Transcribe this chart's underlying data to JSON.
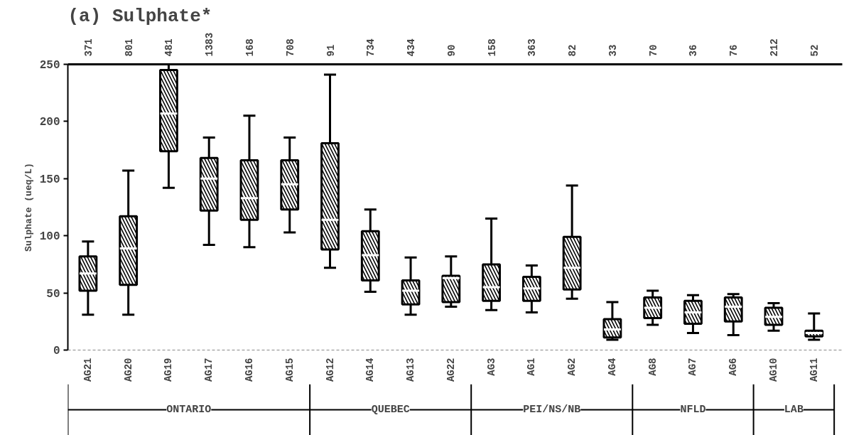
{
  "chart_data": {
    "type": "box",
    "title": "(a) Sulphate*",
    "ylabel": "Sulphate (ueq/L)",
    "categories": [
      "AG21",
      "AG20",
      "AG19",
      "AG17",
      "AG16",
      "AG15",
      "AG12",
      "AG14",
      "AG13",
      "AG22",
      "AG3",
      "AG1",
      "AG2",
      "AG4",
      "AG8",
      "AG7",
      "AG6",
      "AG10",
      "AG11"
    ],
    "color": "#000000",
    "boxes": [
      {
        "low": 31,
        "q1": 52,
        "median": 67,
        "q3": 82,
        "high": 95
      },
      {
        "low": 31,
        "q1": 57,
        "median": 89,
        "q3": 117,
        "high": 157
      },
      {
        "low": 142,
        "q1": 174,
        "median": 207,
        "q3": 245,
        "high": 250
      },
      {
        "low": 92,
        "q1": 122,
        "median": 150,
        "q3": 168,
        "high": 186
      },
      {
        "low": 90,
        "q1": 114,
        "median": 133,
        "q3": 166,
        "high": 205
      },
      {
        "low": 103,
        "q1": 123,
        "median": 145,
        "q3": 166,
        "high": 186
      },
      {
        "low": 72,
        "q1": 88,
        "median": 114,
        "q3": 181,
        "high": 241
      },
      {
        "low": 51,
        "q1": 61,
        "median": 83,
        "q3": 104,
        "high": 123
      },
      {
        "low": 31,
        "q1": 40,
        "median": 52,
        "q3": 61,
        "high": 81
      },
      {
        "low": 38,
        "q1": 42,
        "median": 63,
        "q3": 65,
        "high": 82
      },
      {
        "low": 35,
        "q1": 43,
        "median": 55,
        "q3": 75,
        "high": 115
      },
      {
        "low": 33,
        "q1": 43,
        "median": 54,
        "q3": 64,
        "high": 74
      },
      {
        "low": 45,
        "q1": 53,
        "median": 72,
        "q3": 99,
        "high": 144
      },
      {
        "low": 9,
        "q1": 11,
        "median": 18,
        "q3": 27,
        "high": 42
      },
      {
        "low": 22,
        "q1": 28,
        "median": 37,
        "q3": 46,
        "high": 52
      },
      {
        "low": 15,
        "q1": 23,
        "median": 33,
        "q3": 43,
        "high": 48
      },
      {
        "low": 13,
        "q1": 25,
        "median": 38,
        "q3": 46,
        "high": 49
      },
      {
        "low": 17,
        "q1": 22,
        "median": 29,
        "q3": 37,
        "high": 41
      },
      {
        "low": 9,
        "q1": 12,
        "median": 15,
        "q3": 17,
        "high": 32
      }
    ],
    "ylim": [
      0,
      250
    ],
    "yticks": [
      0,
      50,
      100,
      150,
      200,
      250
    ],
    "annotations": [
      "371",
      "801",
      "481",
      "1383",
      "168",
      "708",
      "91",
      "734",
      "434",
      "90",
      "158",
      "363",
      "82",
      "33",
      "70",
      "36",
      "76",
      "212",
      "52",
      "ONTARIO",
      "QUEBEC",
      "PEI/NS/NB",
      "NFLD",
      "LAB"
    ]
  }
}
